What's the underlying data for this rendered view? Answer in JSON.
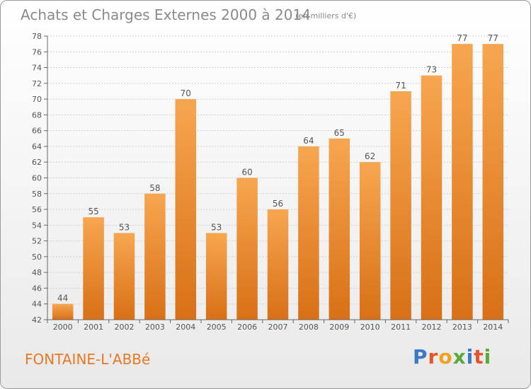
{
  "header": {
    "title": "Achats et Charges Externes 2000 à 2014",
    "subtitle": "(en milliers d'€)"
  },
  "footer": {
    "place": "FONTAINE-L'ABBé",
    "logo": "Proxiti"
  },
  "colors": {
    "bar_light": "#f7a650",
    "bar_dark": "#d87016",
    "place_text": "#e87822",
    "logo_letters": [
      "#3a78c8",
      "#e8542a",
      "#f0a020",
      "#5aaa3a",
      "#3a78c8",
      "#e8542a",
      "#5aaa3a"
    ]
  },
  "chart_data": {
    "type": "bar",
    "title": "Achats et Charges Externes 2000 à 2014",
    "subtitle": "(en milliers d'€)",
    "categories": [
      "2000",
      "2001",
      "2002",
      "2003",
      "2004",
      "2005",
      "2006",
      "2007",
      "2008",
      "2009",
      "2010",
      "2011",
      "2012",
      "2013",
      "2014"
    ],
    "values": [
      44,
      55,
      53,
      58,
      70,
      53,
      60,
      56,
      64,
      65,
      62,
      71,
      73,
      77,
      77
    ],
    "data_labels": [
      "44",
      "55",
      "53",
      "58",
      "70",
      "53",
      "60",
      "56",
      "64",
      "65",
      "62",
      "71",
      "73",
      "77",
      "77"
    ],
    "ylim": [
      42,
      78
    ],
    "yticks": [
      42,
      44,
      46,
      48,
      50,
      52,
      54,
      56,
      58,
      60,
      62,
      64,
      66,
      68,
      70,
      72,
      74,
      76,
      78
    ],
    "ytick_labels": [
      "42",
      "44",
      "46",
      "48",
      "50",
      "52",
      "54",
      "56",
      "58",
      "60",
      "62",
      "64",
      "66",
      "68",
      "70",
      "72",
      "74",
      "76",
      "78"
    ],
    "grid": true,
    "xlabel": "",
    "ylabel": ""
  }
}
